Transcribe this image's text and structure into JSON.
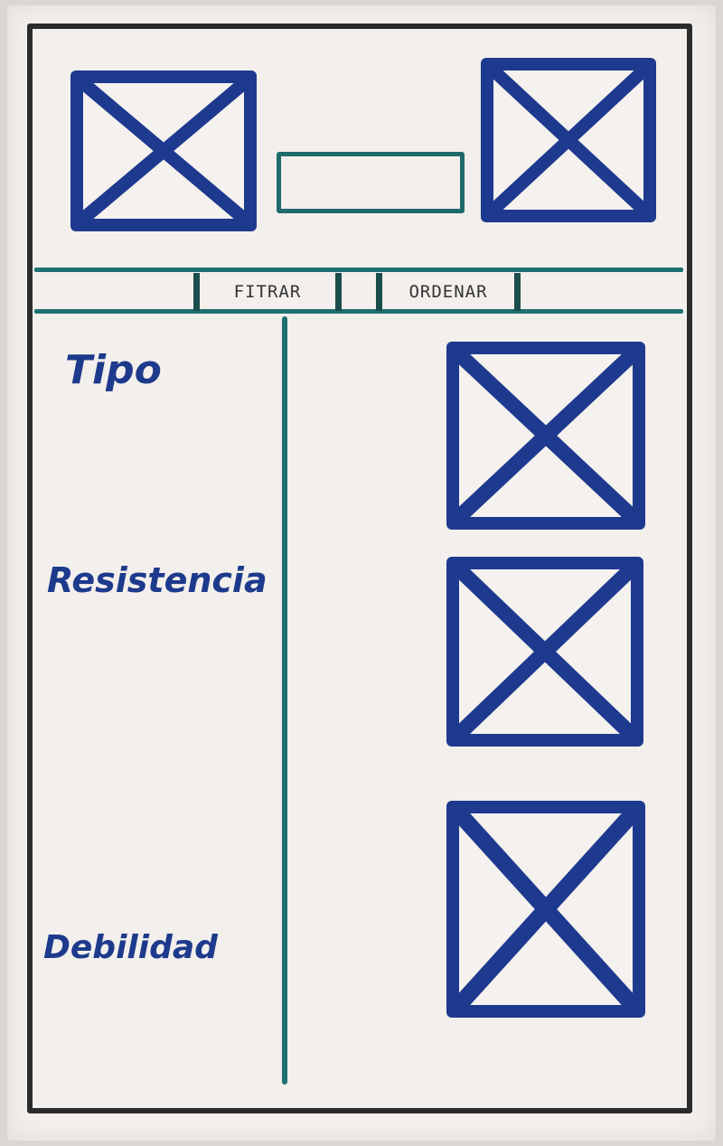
{
  "colors": {
    "frame": "#2b2b2b",
    "placeholder_marker": "#1e3a8f",
    "teal_lines": "#1f7070",
    "label_ink": "#1d3a8c"
  },
  "header": {
    "left_image": "image-placeholder-icon",
    "right_image": "image-placeholder-icon"
  },
  "toolbar": {
    "filter_label": "FITRAR",
    "order_label": "ORDENAR"
  },
  "sidebar": {
    "filters": [
      {
        "label": "Tipo"
      },
      {
        "label": "Resistencia"
      },
      {
        "label": "Debilidad"
      }
    ]
  },
  "results": {
    "items": [
      {
        "image": "image-placeholder-icon"
      },
      {
        "image": "image-placeholder-icon"
      },
      {
        "image": "image-placeholder-icon"
      }
    ]
  }
}
